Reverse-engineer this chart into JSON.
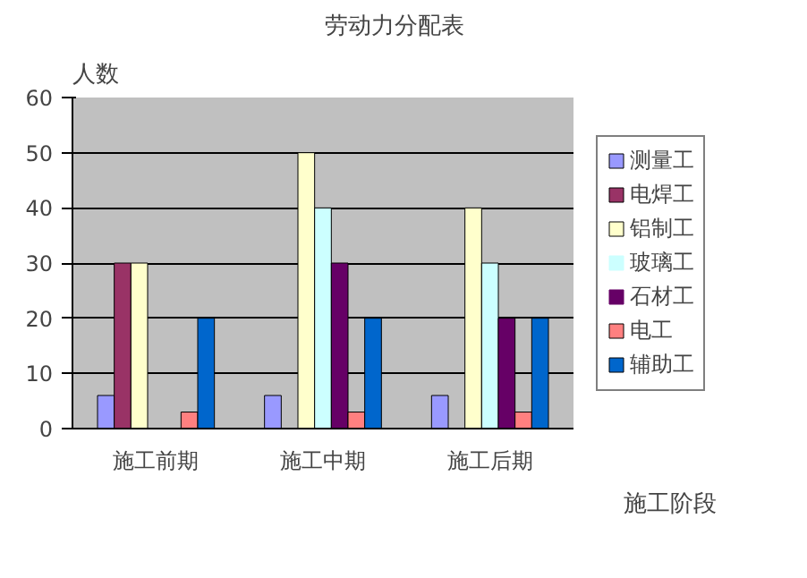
{
  "chart_data": {
    "type": "bar",
    "title": "劳动力分配表",
    "xlabel": "施工阶段",
    "ylabel": "人数",
    "categories": [
      "施工前期",
      "施工中期",
      "施工后期"
    ],
    "series": [
      {
        "name": "测量工",
        "color": "#9999ff",
        "values": [
          6,
          6,
          6
        ]
      },
      {
        "name": "电焊工",
        "color": "#993366",
        "values": [
          30,
          0,
          0
        ]
      },
      {
        "name": "铝制工",
        "color": "#ffffcc",
        "values": [
          30,
          50,
          40
        ]
      },
      {
        "name": "玻璃工",
        "color": "#ccffff",
        "values": [
          0,
          40,
          30
        ]
      },
      {
        "name": "石材工",
        "color": "#660066",
        "values": [
          0,
          30,
          20
        ]
      },
      {
        "name": "电工",
        "color": "#ff8080",
        "values": [
          3,
          3,
          3
        ]
      },
      {
        "name": "辅助工",
        "color": "#0066cc",
        "values": [
          20,
          20,
          20
        ]
      }
    ],
    "ylim": [
      0,
      60
    ],
    "yticks": [
      0,
      10,
      20,
      30,
      40,
      50,
      60
    ],
    "grid": "y",
    "legend": "right"
  }
}
